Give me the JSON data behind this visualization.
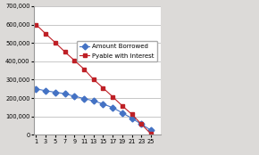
{
  "x": [
    1,
    3,
    5,
    7,
    9,
    11,
    13,
    15,
    17,
    19,
    21,
    23,
    25
  ],
  "amount_borrowed": [
    250000,
    240000,
    232000,
    224000,
    210000,
    198000,
    185000,
    168000,
    148000,
    120000,
    90000,
    58000,
    25000
  ],
  "payable_with_interest": [
    600000,
    550000,
    502000,
    452000,
    405000,
    358000,
    302000,
    255000,
    207000,
    158000,
    112000,
    58000,
    5000
  ],
  "xlim": [
    0.5,
    27
  ],
  "ylim": [
    0,
    700000
  ],
  "xticks": [
    1,
    3,
    5,
    7,
    9,
    11,
    13,
    15,
    17,
    19,
    21,
    23,
    25
  ],
  "yticks": [
    0,
    100000,
    200000,
    300000,
    400000,
    500000,
    600000,
    700000
  ],
  "ytick_labels": [
    "0",
    "100,000",
    "200,000",
    "300,000",
    "400,000",
    "500,000",
    "600,000",
    "700,000"
  ],
  "line1_color": "#4472C4",
  "line1_marker": "D",
  "line1_marker_color": "#4472C4",
  "line1_label": "Amount Borrowed",
  "line2_color": "#BE2026",
  "line2_marker": "s",
  "line2_marker_color": "#BE2026",
  "line2_label": "Pyable with Interest",
  "bg_color": "#dcdad8",
  "plot_bg_color": "#ffffff",
  "grid_color": "#b0b0b0",
  "legend_fontsize": 5.0,
  "tick_fontsize": 4.8,
  "marker_size": 3.5,
  "line_width": 0.8
}
